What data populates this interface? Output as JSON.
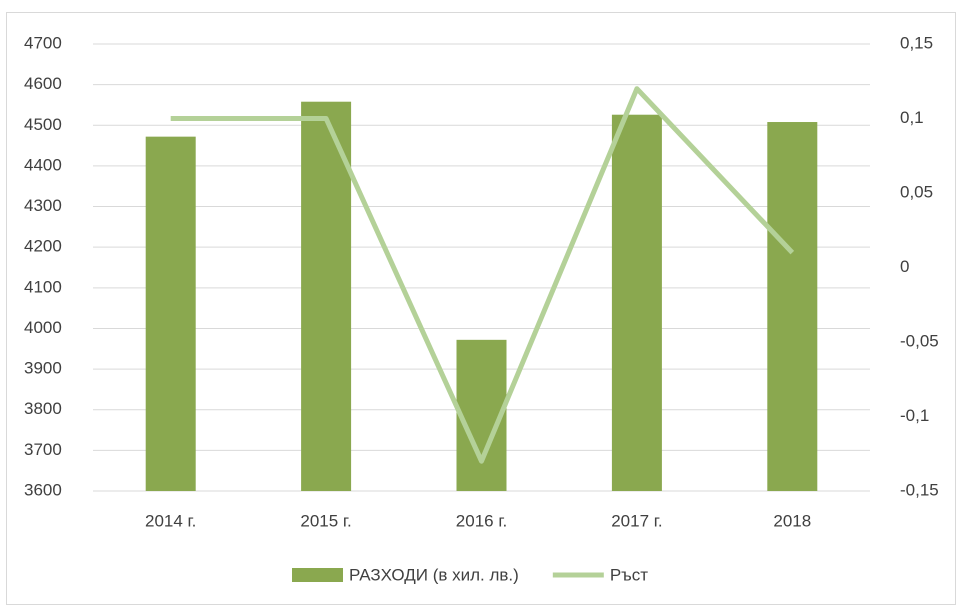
{
  "chart_data": {
    "type": "bar",
    "categories": [
      "2014 г.",
      "2015 г.",
      "2016 г.",
      "2017 г.",
      "2018"
    ],
    "series": [
      {
        "name": "РАЗХОДИ (в хил. лв.)",
        "type": "bar",
        "color": "#8aa84f",
        "values": [
          4472,
          4558,
          3972,
          4526,
          4508
        ]
      },
      {
        "name": "Ръст",
        "type": "line",
        "axis": "y2",
        "color": "#b4d198",
        "values": [
          0.1,
          0.1,
          -0.13,
          0.12,
          0.01
        ]
      }
    ],
    "ylim": [
      3600,
      4700
    ],
    "yticks": [
      3600,
      3700,
      3800,
      3900,
      4000,
      4100,
      4200,
      4300,
      4400,
      4500,
      4600,
      4700
    ],
    "y2lim": [
      -0.15,
      0.15
    ],
    "y2ticks": [
      {
        "value": -0.15,
        "label": "-0,15"
      },
      {
        "value": -0.1,
        "label": "-0,1"
      },
      {
        "value": -0.05,
        "label": "-0,05"
      },
      0,
      {
        "value": 0.05,
        "label": "0,05"
      },
      {
        "value": 0.1,
        "label": "0,1"
      },
      {
        "value": 0.15,
        "label": "0,15"
      }
    ],
    "grid": true,
    "legend": "bottom"
  }
}
